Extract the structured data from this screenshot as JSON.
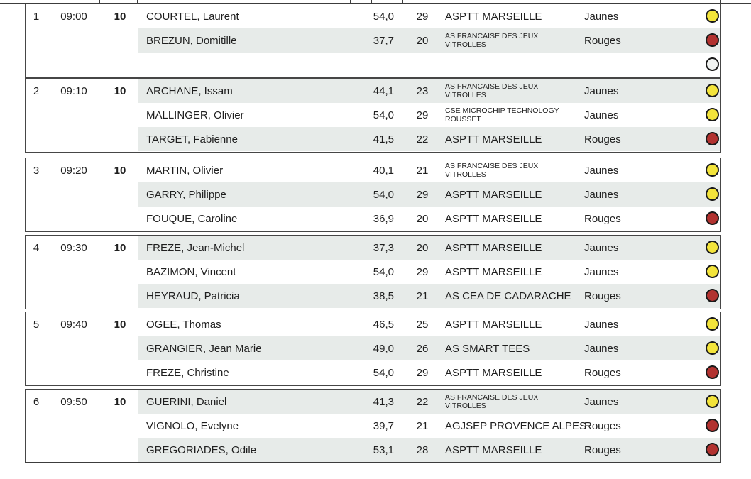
{
  "colors": {
    "row_alt": "#e7ebe9",
    "border_dark": "#3c3c3c",
    "text": "#1f1f1f",
    "ball_yellow": "#f3e43b",
    "ball_red": "#b23230",
    "ball_white": "#f1f3f1",
    "ball_outline": "#1a1a1a"
  },
  "table": {
    "groups": [
      {
        "number": "1",
        "time": "09:00",
        "hole": "10",
        "players": [
          {
            "name": "COURTEL, Laurent",
            "index": "54,0",
            "playing_hcp": "29",
            "club": "ASPTT MARSEILLE",
            "tee": "Jaunes",
            "ball": "yellow"
          },
          {
            "name": "BREZUN, Domitille",
            "index": "37,7",
            "playing_hcp": "20",
            "club": "AS FRANCAISE DES JEUX\nVITROLLES",
            "tee": "Rouges",
            "ball": "red"
          },
          {
            "name": "",
            "index": "",
            "playing_hcp": "",
            "club": "",
            "tee": "",
            "ball": "white"
          }
        ]
      },
      {
        "number": "2",
        "time": "09:10",
        "hole": "10",
        "players": [
          {
            "name": "ARCHANE, Issam",
            "index": "44,1",
            "playing_hcp": "23",
            "club": "AS FRANCAISE DES JEUX\nVITROLLES",
            "tee": "Jaunes",
            "ball": "yellow"
          },
          {
            "name": "MALLINGER, Olivier",
            "index": "54,0",
            "playing_hcp": "29",
            "club": "CSE MICROCHIP TECHNOLOGY\nROUSSET",
            "tee": "Jaunes",
            "ball": "yellow"
          },
          {
            "name": "TARGET, Fabienne",
            "index": "41,5",
            "playing_hcp": "22",
            "club": "ASPTT MARSEILLE",
            "tee": "Rouges",
            "ball": "red"
          }
        ]
      },
      {
        "number": "3",
        "time": "09:20",
        "hole": "10",
        "players": [
          {
            "name": "MARTIN, Olivier",
            "index": "40,1",
            "playing_hcp": "21",
            "club": "AS FRANCAISE DES JEUX\nVITROLLES",
            "tee": "Jaunes",
            "ball": "yellow"
          },
          {
            "name": "GARRY, Philippe",
            "index": "54,0",
            "playing_hcp": "29",
            "club": "ASPTT MARSEILLE",
            "tee": "Jaunes",
            "ball": "yellow"
          },
          {
            "name": "FOUQUE, Caroline",
            "index": "36,9",
            "playing_hcp": "20",
            "club": "ASPTT MARSEILLE",
            "tee": "Rouges",
            "ball": "red"
          }
        ]
      },
      {
        "number": "4",
        "time": "09:30",
        "hole": "10",
        "players": [
          {
            "name": "FREZE, Jean-Michel",
            "index": "37,3",
            "playing_hcp": "20",
            "club": "ASPTT MARSEILLE",
            "tee": "Jaunes",
            "ball": "yellow"
          },
          {
            "name": "BAZIMON, Vincent",
            "index": "54,0",
            "playing_hcp": "29",
            "club": "ASPTT MARSEILLE",
            "tee": "Jaunes",
            "ball": "yellow"
          },
          {
            "name": "HEYRAUD, Patricia",
            "index": "38,5",
            "playing_hcp": "21",
            "club": "AS CEA DE CADARACHE",
            "tee": "Rouges",
            "ball": "red"
          }
        ]
      },
      {
        "number": "5",
        "time": "09:40",
        "hole": "10",
        "players": [
          {
            "name": "OGEE, Thomas",
            "index": "46,5",
            "playing_hcp": "25",
            "club": "ASPTT MARSEILLE",
            "tee": "Jaunes",
            "ball": "yellow"
          },
          {
            "name": "GRANGIER, Jean Marie",
            "index": "49,0",
            "playing_hcp": "26",
            "club": "AS SMART TEES",
            "tee": "Jaunes",
            "ball": "yellow"
          },
          {
            "name": "FREZE, Christine",
            "index": "54,0",
            "playing_hcp": "29",
            "club": "ASPTT MARSEILLE",
            "tee": "Rouges",
            "ball": "red"
          }
        ]
      },
      {
        "number": "6",
        "time": "09:50",
        "hole": "10",
        "players": [
          {
            "name": "GUERINI, Daniel",
            "index": "41,3",
            "playing_hcp": "22",
            "club": "AS FRANCAISE DES JEUX\nVITROLLES",
            "tee": "Jaunes",
            "ball": "yellow"
          },
          {
            "name": "VIGNOLO, Evelyne",
            "index": "39,7",
            "playing_hcp": "21",
            "club": "AGJSEP PROVENCE ALPES",
            "tee": "Rouges",
            "ball": "red"
          },
          {
            "name": "GREGORIADES, Odile",
            "index": "53,1",
            "playing_hcp": "28",
            "club": "ASPTT MARSEILLE",
            "tee": "Rouges",
            "ball": "red"
          }
        ]
      }
    ]
  }
}
